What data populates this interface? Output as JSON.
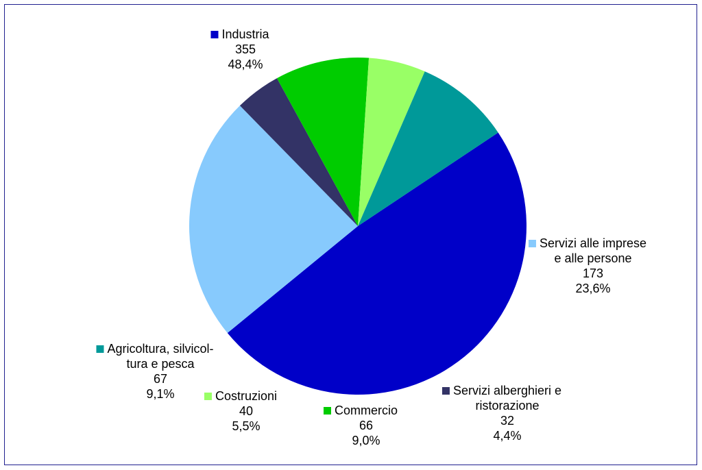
{
  "chart_data": {
    "type": "pie",
    "title": "",
    "slices": [
      {
        "label": [
          "Industria"
        ],
        "value": 355,
        "percent": "48,4%",
        "color": "#0000c8"
      },
      {
        "label": [
          "Servizi alle imprese",
          "e alle persone"
        ],
        "value": 173,
        "percent": "23,6%",
        "color": "#87cafd"
      },
      {
        "label": [
          "Servizi alberghieri e",
          "ristorazione"
        ],
        "value": 32,
        "percent": "4,4%",
        "color": "#333366"
      },
      {
        "label": [
          "Commercio"
        ],
        "value": 66,
        "percent": "9,0%",
        "color": "#00cc00"
      },
      {
        "label": [
          "Costruzioni"
        ],
        "value": 40,
        "percent": "5,5%",
        "color": "#99ff66"
      },
      {
        "label": [
          "Agricoltura, silvicol-",
          "tura e pesca"
        ],
        "value": 67,
        "percent": "9,1%",
        "color": "#009999"
      }
    ]
  }
}
